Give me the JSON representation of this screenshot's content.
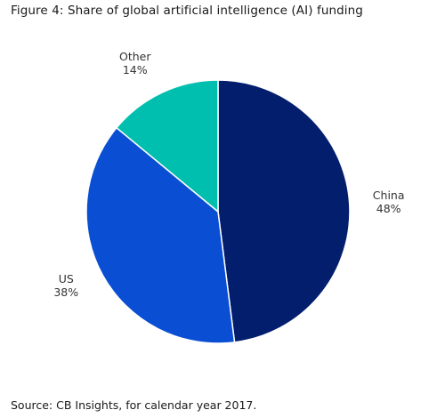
{
  "figure": {
    "title": "Figure 4: Share of global artificial intelligence (AI) funding",
    "source": "Source: CB Insights, for calendar year 2017."
  },
  "chart_data": {
    "type": "pie",
    "title": "Figure 4: Share of global artificial intelligence (AI) funding",
    "slices": [
      {
        "name": "China",
        "value": 48,
        "label": "48%",
        "color": "#041E6E"
      },
      {
        "name": "US",
        "value": 38,
        "label": "38%",
        "color": "#0A4FD3"
      },
      {
        "name": "Other",
        "value": 14,
        "label": "14%",
        "color": "#00BFAE"
      }
    ],
    "start_angle_deg": 0,
    "direction": "clockwise",
    "legend": "none",
    "labels": "outside"
  }
}
